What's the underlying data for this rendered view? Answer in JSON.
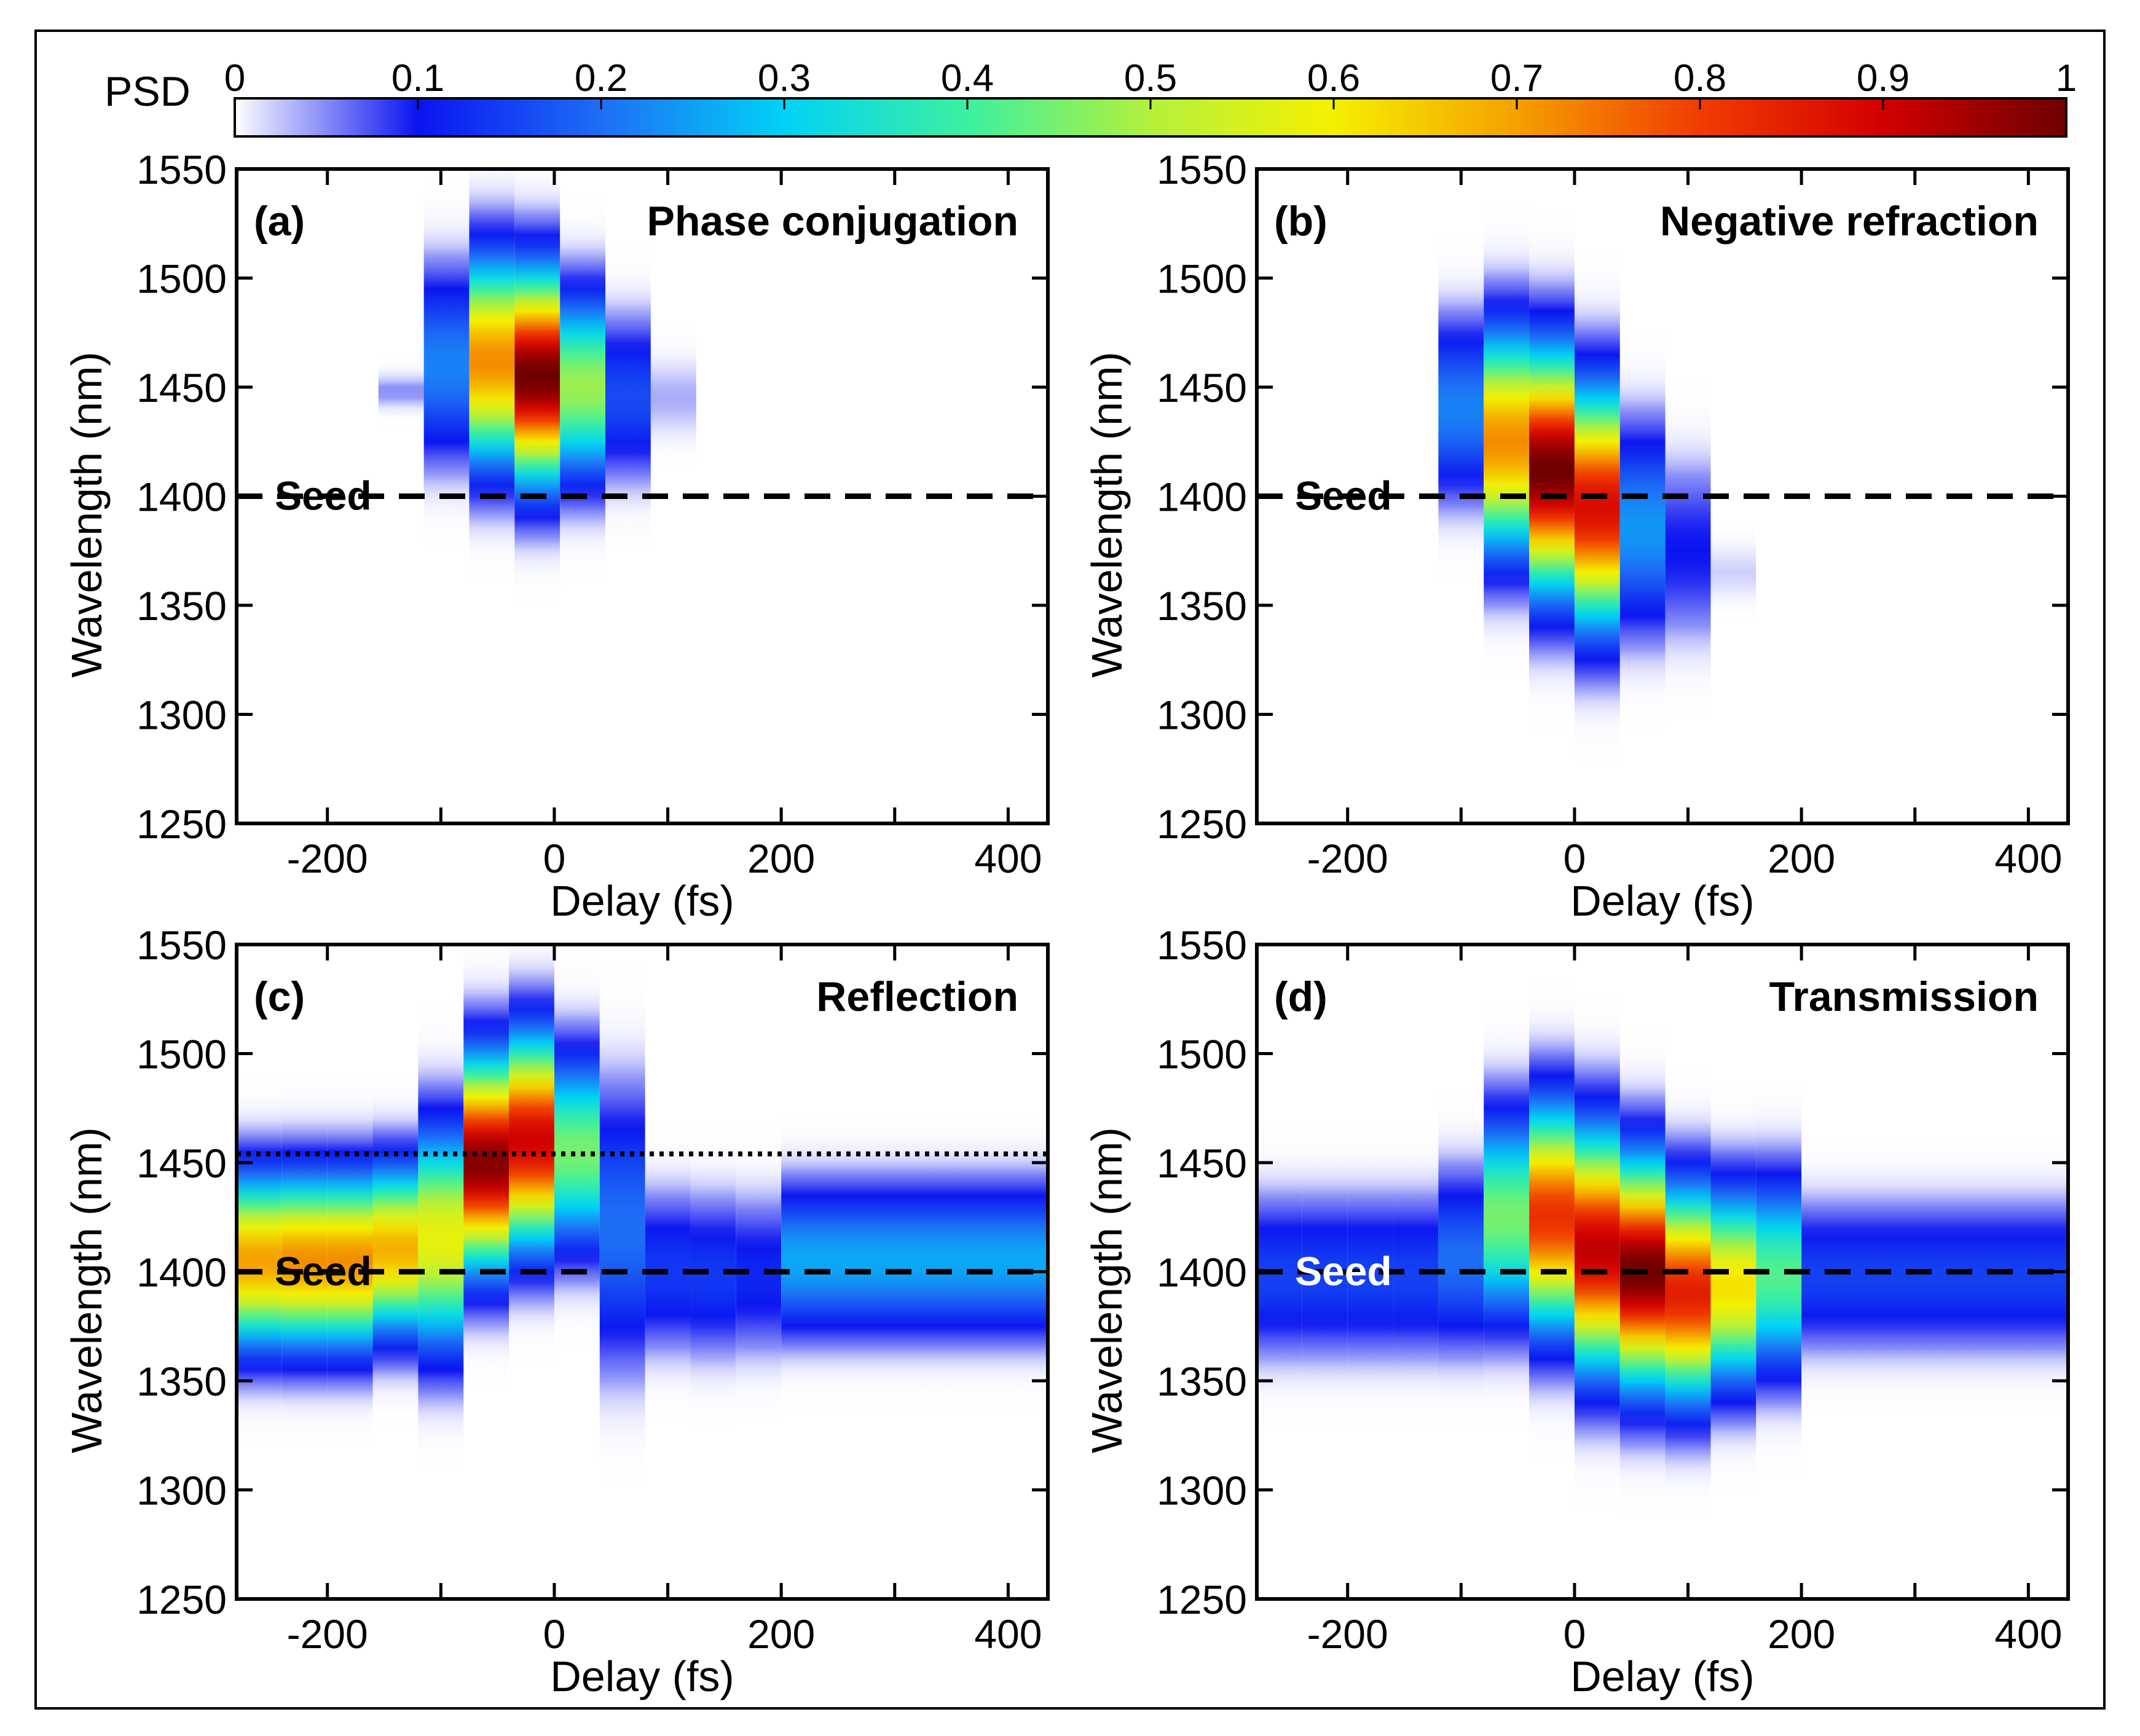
{
  "colorbar": {
    "label": "PSD",
    "min": 0,
    "max": 1,
    "ticks": [
      "0",
      "0.1",
      "0.2",
      "0.3",
      "0.4",
      "0.5",
      "0.6",
      "0.7",
      "0.8",
      "0.9",
      "1"
    ],
    "colormap": [
      "#ffffff",
      "#0a14f0",
      "#1e6ef5",
      "#00d2f5",
      "#3cf0a0",
      "#b4f03c",
      "#f5f000",
      "#f5a000",
      "#f03c00",
      "#d20000",
      "#6e0000"
    ]
  },
  "chart_data": [
    {
      "type": "heatmap",
      "panel": "(a)",
      "title": "Phase conjugation",
      "xlabel": "Delay (fs)",
      "ylabel": "Wavelength (nm)",
      "xlim": [
        -280,
        435
      ],
      "ylim": [
        1250,
        1550
      ],
      "xticks": [
        "-200",
        "0",
        "200",
        "400"
      ],
      "yticks": [
        "1250",
        "1300",
        "1350",
        "1400",
        "1450",
        "1500",
        "1550"
      ],
      "reference_lines": [
        {
          "style": "dashed",
          "y": 1400,
          "label": "Seed"
        }
      ],
      "label_color": "#000000",
      "columns": [
        {
          "x": [
            -155,
            -115
          ],
          "peak": 0.05,
          "center": 1448,
          "width": 6
        },
        {
          "x": [
            -115,
            -75
          ],
          "peak": 0.22,
          "center": 1460,
          "width": 28
        },
        {
          "x": [
            -75,
            -35
          ],
          "peak": 0.72,
          "center": 1462,
          "width": 30
        },
        {
          "x": [
            -35,
            5
          ],
          "peak": 1.0,
          "center": 1455,
          "width": 30
        },
        {
          "x": [
            5,
            45
          ],
          "peak": 0.48,
          "center": 1450,
          "width": 27
        },
        {
          "x": [
            45,
            85
          ],
          "peak": 0.16,
          "center": 1445,
          "width": 24
        },
        {
          "x": [
            85,
            125
          ],
          "peak": 0.04,
          "center": 1445,
          "width": 14
        }
      ]
    },
    {
      "type": "heatmap",
      "panel": "(b)",
      "title": "Negative refraction",
      "xlabel": "Delay (fs)",
      "ylabel": "Wavelength (nm)",
      "xlim": [
        -280,
        435
      ],
      "ylim": [
        1250,
        1550
      ],
      "xticks": [
        "-200",
        "0",
        "200",
        "400"
      ],
      "yticks": [
        "1250",
        "1300",
        "1350",
        "1400",
        "1450",
        "1500",
        "1550"
      ],
      "reference_lines": [
        {
          "style": "dashed",
          "y": 1400,
          "label": "Seed"
        }
      ],
      "label_color": "#000000",
      "columns": [
        {
          "x": [
            -120,
            -80
          ],
          "peak": 0.22,
          "center": 1440,
          "width": 26
        },
        {
          "x": [
            -80,
            -40
          ],
          "peak": 0.72,
          "center": 1425,
          "width": 32
        },
        {
          "x": [
            -40,
            0
          ],
          "peak": 1.0,
          "center": 1412,
          "width": 34
        },
        {
          "x": [
            0,
            40
          ],
          "peak": 0.88,
          "center": 1395,
          "width": 34
        },
        {
          "x": [
            40,
            80
          ],
          "peak": 0.24,
          "center": 1385,
          "width": 30
        },
        {
          "x": [
            80,
            120
          ],
          "peak": 0.1,
          "center": 1375,
          "width": 28
        },
        {
          "x": [
            120,
            160
          ],
          "peak": 0.03,
          "center": 1365,
          "width": 10
        }
      ]
    },
    {
      "type": "heatmap",
      "panel": "(c)",
      "title": "Reflection",
      "xlabel": "Delay (fs)",
      "ylabel": "Wavelength (nm)",
      "xlim": [
        -280,
        435
      ],
      "ylim": [
        1250,
        1550
      ],
      "xticks": [
        "-200",
        "0",
        "200",
        "400"
      ],
      "yticks": [
        "1250",
        "1300",
        "1350",
        "1400",
        "1450",
        "1500",
        "1550"
      ],
      "reference_lines": [
        {
          "style": "dotted",
          "y": 1454,
          "label": ""
        },
        {
          "style": "dashed",
          "y": 1400,
          "label": "Seed"
        }
      ],
      "label_color": "#000000",
      "columns": [
        {
          "x": [
            -280,
            -240
          ],
          "peak": 0.7,
          "center": 1405,
          "width": 25
        },
        {
          "x": [
            -240,
            -200
          ],
          "peak": 0.72,
          "center": 1405,
          "width": 25
        },
        {
          "x": [
            -200,
            -160
          ],
          "peak": 0.72,
          "center": 1405,
          "width": 25
        },
        {
          "x": [
            -160,
            -120
          ],
          "peak": 0.68,
          "center": 1410,
          "width": 24
        },
        {
          "x": [
            -120,
            -80
          ],
          "peak": 0.58,
          "center": 1415,
          "width": 32
        },
        {
          "x": [
            -80,
            -40
          ],
          "peak": 0.98,
          "center": 1450,
          "width": 30
        },
        {
          "x": [
            -40,
            0
          ],
          "peak": 0.9,
          "center": 1460,
          "width": 30
        },
        {
          "x": [
            0,
            40
          ],
          "peak": 0.45,
          "center": 1455,
          "width": 28
        },
        {
          "x": [
            40,
            80
          ],
          "peak": 0.2,
          "center": 1420,
          "width": 40
        },
        {
          "x": [
            80,
            120
          ],
          "peak": 0.14,
          "center": 1400,
          "width": 24
        },
        {
          "x": [
            120,
            160
          ],
          "peak": 0.14,
          "center": 1398,
          "width": 24
        },
        {
          "x": [
            160,
            200
          ],
          "peak": 0.12,
          "center": 1398,
          "width": 24
        },
        {
          "x": [
            200,
            435
          ],
          "peak": 0.26,
          "center": 1405,
          "width": 22
        }
      ]
    },
    {
      "type": "heatmap",
      "panel": "(d)",
      "title": "Transmission",
      "xlabel": "Delay (fs)",
      "ylabel": "Wavelength (nm)",
      "xlim": [
        -280,
        435
      ],
      "ylim": [
        1250,
        1550
      ],
      "xticks": [
        "-200",
        "0",
        "200",
        "400"
      ],
      "yticks": [
        "1250",
        "1300",
        "1350",
        "1400",
        "1450",
        "1500",
        "1550"
      ],
      "reference_lines": [
        {
          "style": "dashed",
          "y": 1400,
          "label": "Seed"
        }
      ],
      "label_color": "#ffffff",
      "columns": [
        {
          "x": [
            -280,
            -240
          ],
          "peak": 0.15,
          "center": 1398,
          "width": 24
        },
        {
          "x": [
            -240,
            -200
          ],
          "peak": 0.15,
          "center": 1398,
          "width": 24
        },
        {
          "x": [
            -200,
            -160
          ],
          "peak": 0.15,
          "center": 1398,
          "width": 24
        },
        {
          "x": [
            -160,
            -120
          ],
          "peak": 0.15,
          "center": 1398,
          "width": 24
        },
        {
          "x": [
            -120,
            -80
          ],
          "peak": 0.2,
          "center": 1405,
          "width": 26
        },
        {
          "x": [
            -80,
            -40
          ],
          "peak": 0.45,
          "center": 1425,
          "width": 30
        },
        {
          "x": [
            -40,
            0
          ],
          "peak": 0.82,
          "center": 1425,
          "width": 32
        },
        {
          "x": [
            0,
            40
          ],
          "peak": 0.92,
          "center": 1410,
          "width": 34
        },
        {
          "x": [
            40,
            80
          ],
          "peak": 1.0,
          "center": 1400,
          "width": 32
        },
        {
          "x": [
            80,
            120
          ],
          "peak": 0.85,
          "center": 1390,
          "width": 30
        },
        {
          "x": [
            120,
            160
          ],
          "peak": 0.62,
          "center": 1393,
          "width": 28
        },
        {
          "x": [
            160,
            200
          ],
          "peak": 0.42,
          "center": 1398,
          "width": 28
        },
        {
          "x": [
            200,
            435
          ],
          "peak": 0.15,
          "center": 1398,
          "width": 22
        }
      ]
    }
  ]
}
